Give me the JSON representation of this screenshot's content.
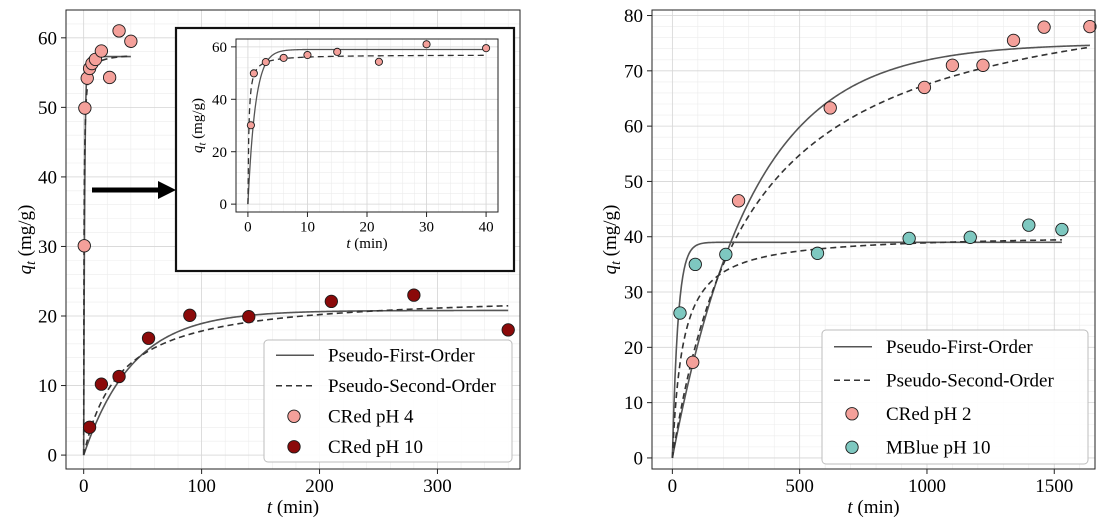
{
  "chart_data": [
    {
      "type": "scatter",
      "panel": "left",
      "xlabel": "t (min)",
      "ylabel": "q_t (mg/g)",
      "xlim": [
        -15,
        370
      ],
      "ylim": [
        -2,
        64
      ],
      "xticks": [
        0,
        100,
        200,
        300
      ],
      "yticks": [
        0,
        10,
        20,
        30,
        40,
        50,
        60
      ],
      "grid": true,
      "legend_position": "bottom-right",
      "legend": [
        {
          "label": "Pseudo-First-Order",
          "kind": "solid-line"
        },
        {
          "label": "Pseudo-Second-Order",
          "kind": "dashed-line"
        },
        {
          "label": "CRed pH 4",
          "kind": "marker",
          "color": "#f4a09a"
        },
        {
          "label": "CRed pH 10",
          "kind": "marker",
          "color": "#8b0a0a"
        }
      ],
      "series": [
        {
          "name": "CRed pH 4",
          "color": "#f4a09a",
          "x": [
            0.5,
            1,
            3,
            5,
            7,
            10,
            15,
            22,
            30,
            40
          ],
          "y": [
            30.1,
            49.9,
            54.2,
            55.6,
            56.3,
            56.9,
            58.1,
            54.3,
            61.0,
            59.5
          ]
        },
        {
          "name": "CRed pH 10",
          "color": "#8b0a0a",
          "x": [
            5,
            15,
            30,
            55,
            90,
            140,
            210,
            280,
            360
          ],
          "y": [
            4.0,
            10.2,
            11.3,
            16.8,
            20.1,
            19.9,
            22.1,
            23.0,
            18.0
          ]
        }
      ],
      "fits": [
        {
          "model": "pseudo-first-order",
          "style": "solid",
          "color": "#555555",
          "qe": 57.3,
          "k": 1.2,
          "xmax": 40
        },
        {
          "model": "pseudo-second-order",
          "style": "dashed",
          "color": "#333333",
          "qe": 57.8,
          "k": 0.06,
          "xmax": 40
        },
        {
          "model": "pseudo-first-order",
          "style": "solid",
          "color": "#555555",
          "qe": 20.8,
          "k": 0.024,
          "xmax": 360
        },
        {
          "model": "pseudo-second-order",
          "style": "dashed",
          "color": "#333333",
          "qe": 23.3,
          "k": 0.0014,
          "xmax": 360
        }
      ],
      "inset": {
        "xlabel": "t (min)",
        "ylabel": "q_t (mg/g)",
        "xlim": [
          -2,
          42
        ],
        "ylim": [
          -3,
          63
        ],
        "xticks": [
          0,
          10,
          20,
          30,
          40
        ],
        "yticks": [
          0,
          20,
          40,
          60
        ],
        "series": [
          {
            "name": "CRed pH 4",
            "color": "#f4a09a",
            "x": [
              0.5,
              1,
              3,
              6,
              10,
              15,
              22,
              30,
              40
            ],
            "y": [
              30.1,
              49.9,
              54.2,
              55.8,
              56.9,
              58.1,
              54.3,
              61.0,
              59.5
            ]
          }
        ],
        "fits": [
          {
            "model": "pseudo-first-order",
            "style": "solid",
            "color": "#555555",
            "qe": 59.0,
            "k": 0.8,
            "xmax": 40
          },
          {
            "model": "pseudo-second-order",
            "style": "dashed",
            "color": "#333333",
            "qe": 57.0,
            "k": 0.11,
            "xmax": 40
          }
        ]
      }
    },
    {
      "type": "scatter",
      "panel": "right",
      "xlabel": "t (min)",
      "ylabel": "q_t (mg/g)",
      "xlim": [
        -80,
        1660
      ],
      "ylim": [
        -2,
        81
      ],
      "xticks": [
        0,
        500,
        1000,
        1500
      ],
      "yticks": [
        0,
        10,
        20,
        30,
        40,
        50,
        60,
        70,
        80
      ],
      "grid": true,
      "legend_position": "bottom-right",
      "legend": [
        {
          "label": "Pseudo-First-Order",
          "kind": "solid-line"
        },
        {
          "label": "Pseudo-Second-Order",
          "kind": "dashed-line"
        },
        {
          "label": "CRed pH 2",
          "kind": "marker",
          "color": "#f4a09a"
        },
        {
          "label": "MBlue pH 10",
          "kind": "marker",
          "color": "#7ec8c0"
        }
      ],
      "series": [
        {
          "name": "CRed pH 2",
          "color": "#f4a09a",
          "x": [
            80,
            260,
            620,
            990,
            1100,
            1220,
            1340,
            1460,
            1640
          ],
          "y": [
            17.3,
            46.5,
            63.3,
            67.0,
            71.0,
            71.0,
            75.5,
            77.9,
            78.0
          ]
        },
        {
          "name": "MBlue pH 10",
          "color": "#7ec8c0",
          "x": [
            30,
            90,
            210,
            570,
            930,
            1170,
            1400,
            1530
          ],
          "y": [
            26.2,
            35.0,
            36.8,
            37.0,
            39.7,
            39.9,
            42.1,
            41.3
          ]
        }
      ],
      "fits": [
        {
          "model": "pseudo-first-order",
          "style": "solid",
          "color": "#555555",
          "qe": 75.0,
          "k": 0.0032,
          "xmax": 1640
        },
        {
          "model": "pseudo-second-order",
          "style": "dashed",
          "color": "#333333",
          "qe": 88.0,
          "k": 3.75e-05,
          "xmax": 1640
        },
        {
          "model": "pseudo-first-order",
          "style": "solid",
          "color": "#555555",
          "qe": 39.0,
          "k": 0.045,
          "xmax": 1530
        },
        {
          "model": "pseudo-second-order",
          "style": "dashed",
          "color": "#333333",
          "qe": 40.5,
          "k": 0.0006,
          "xmax": 1530
        }
      ]
    }
  ]
}
